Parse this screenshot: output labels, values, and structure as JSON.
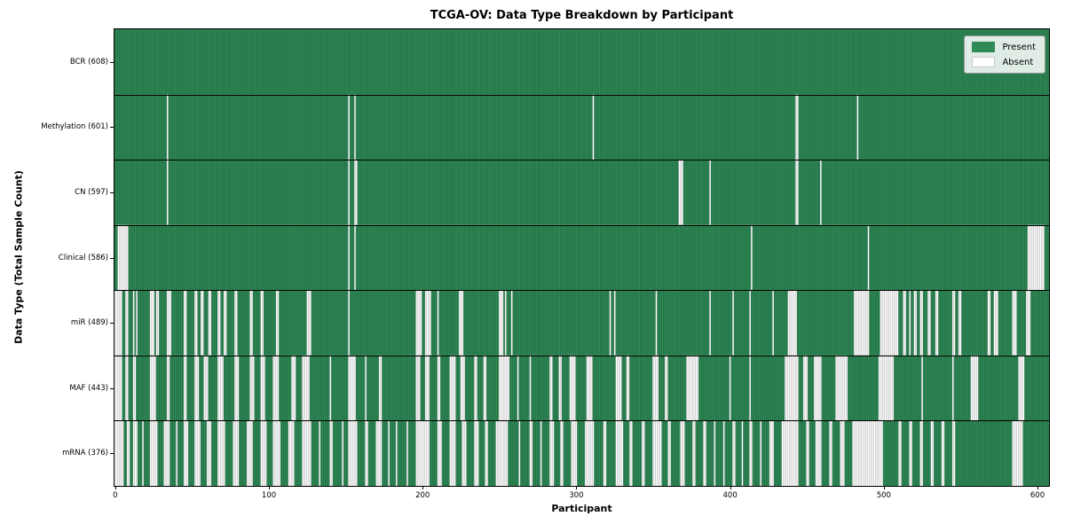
{
  "title": "TCGA-OV: Data Type Breakdown by Participant",
  "legend": {
    "present_label": "Present",
    "absent_label": "Absent"
  },
  "chart_data": {
    "type": "heatmap",
    "title": "TCGA-OV: Data Type Breakdown by Participant",
    "xlabel": "Participant",
    "ylabel": "Data Type (Total Sample Count)",
    "legend_labels": [
      "Present",
      "Absent"
    ],
    "legend_position": "upper right",
    "n_participants": 608,
    "x_ticks": [
      0,
      100,
      200,
      300,
      400,
      500,
      600
    ],
    "xlim": [
      -0.5,
      607.5
    ],
    "grid": false,
    "colors": {
      "present": "#2e8b57",
      "absent": "#ffffff",
      "cell_edge": "rgba(0,0,0,0.30)",
      "row_separator": "#000000",
      "spine": "#000000"
    },
    "rows": [
      {
        "name": "BCR",
        "label": "BCR (608)",
        "present_count": 608,
        "absent_ranges": []
      },
      {
        "name": "Methylation",
        "label": "Methylation (601)",
        "present_count": 601,
        "absent_ranges": [
          [
            34,
            34
          ],
          [
            152,
            152
          ],
          [
            156,
            156
          ],
          [
            311,
            311
          ],
          [
            443,
            444
          ],
          [
            483,
            483
          ]
        ]
      },
      {
        "name": "CN",
        "label": "CN (597)",
        "present_count": 597,
        "absent_ranges": [
          [
            34,
            34
          ],
          [
            152,
            152
          ],
          [
            156,
            157
          ],
          [
            367,
            369
          ],
          [
            387,
            387
          ],
          [
            443,
            444
          ],
          [
            459,
            459
          ]
        ]
      },
      {
        "name": "Clinical",
        "label": "Clinical (586)",
        "present_count": 586,
        "absent_ranges": [
          [
            2,
            8
          ],
          [
            152,
            152
          ],
          [
            156,
            156
          ],
          [
            414,
            414
          ],
          [
            490,
            490
          ],
          [
            594,
            604
          ]
        ]
      },
      {
        "name": "miR",
        "label": "miR (489)",
        "present_count": 489,
        "absent_ranges": [
          [
            0,
            4
          ],
          [
            7,
            8
          ],
          [
            12,
            12
          ],
          [
            14,
            14
          ],
          [
            23,
            25
          ],
          [
            27,
            28
          ],
          [
            34,
            36
          ],
          [
            45,
            46
          ],
          [
            52,
            53
          ],
          [
            56,
            57
          ],
          [
            61,
            62
          ],
          [
            67,
            68
          ],
          [
            71,
            72
          ],
          [
            78,
            79
          ],
          [
            88,
            89
          ],
          [
            95,
            96
          ],
          [
            105,
            106
          ],
          [
            125,
            127
          ],
          [
            152,
            152
          ],
          [
            196,
            199
          ],
          [
            202,
            205
          ],
          [
            210,
            210
          ],
          [
            224,
            226
          ],
          [
            250,
            252
          ],
          [
            254,
            254
          ],
          [
            258,
            258
          ],
          [
            322,
            322
          ],
          [
            325,
            325
          ],
          [
            352,
            352
          ],
          [
            387,
            387
          ],
          [
            402,
            402
          ],
          [
            413,
            413
          ],
          [
            428,
            428
          ],
          [
            438,
            443
          ],
          [
            481,
            490
          ],
          [
            498,
            509
          ],
          [
            513,
            514
          ],
          [
            517,
            517
          ],
          [
            520,
            521
          ],
          [
            524,
            525
          ],
          [
            529,
            530
          ],
          [
            534,
            535
          ],
          [
            545,
            546
          ],
          [
            549,
            550
          ],
          [
            568,
            569
          ],
          [
            572,
            574
          ],
          [
            584,
            586
          ],
          [
            593,
            595
          ]
        ]
      },
      {
        "name": "MAF",
        "label": "MAF (443)",
        "present_count": 443,
        "absent_ranges": [
          [
            0,
            4
          ],
          [
            7,
            8
          ],
          [
            12,
            13
          ],
          [
            23,
            26
          ],
          [
            34,
            35
          ],
          [
            45,
            46
          ],
          [
            52,
            54
          ],
          [
            58,
            60
          ],
          [
            67,
            70
          ],
          [
            78,
            80
          ],
          [
            88,
            90
          ],
          [
            95,
            97
          ],
          [
            103,
            106
          ],
          [
            115,
            117
          ],
          [
            122,
            126
          ],
          [
            140,
            140
          ],
          [
            152,
            156
          ],
          [
            163,
            163
          ],
          [
            172,
            173
          ],
          [
            196,
            198
          ],
          [
            202,
            204
          ],
          [
            210,
            211
          ],
          [
            218,
            221
          ],
          [
            225,
            227
          ],
          [
            234,
            235
          ],
          [
            240,
            241
          ],
          [
            250,
            256
          ],
          [
            262,
            262
          ],
          [
            270,
            270
          ],
          [
            283,
            284
          ],
          [
            289,
            290
          ],
          [
            296,
            299
          ],
          [
            307,
            310
          ],
          [
            326,
            329
          ],
          [
            333,
            334
          ],
          [
            350,
            353
          ],
          [
            358,
            359
          ],
          [
            372,
            379
          ],
          [
            400,
            400
          ],
          [
            413,
            413
          ],
          [
            436,
            444
          ],
          [
            448,
            450
          ],
          [
            455,
            459
          ],
          [
            469,
            476
          ],
          [
            497,
            506
          ],
          [
            525,
            525
          ],
          [
            545,
            545
          ],
          [
            557,
            561
          ],
          [
            588,
            591
          ]
        ]
      },
      {
        "name": "mRNA",
        "label": "mRNA (376)",
        "present_count": 376,
        "absent_ranges": [
          [
            0,
            5
          ],
          [
            8,
            9
          ],
          [
            12,
            14
          ],
          [
            18,
            18
          ],
          [
            23,
            27
          ],
          [
            32,
            35
          ],
          [
            40,
            40
          ],
          [
            45,
            47
          ],
          [
            52,
            55
          ],
          [
            60,
            62
          ],
          [
            67,
            71
          ],
          [
            77,
            80
          ],
          [
            86,
            89
          ],
          [
            95,
            98
          ],
          [
            103,
            107
          ],
          [
            113,
            116
          ],
          [
            122,
            127
          ],
          [
            133,
            133
          ],
          [
            140,
            141
          ],
          [
            148,
            148
          ],
          [
            152,
            157
          ],
          [
            163,
            164
          ],
          [
            170,
            173
          ],
          [
            178,
            178
          ],
          [
            183,
            183
          ],
          [
            190,
            190
          ],
          [
            196,
            204
          ],
          [
            210,
            212
          ],
          [
            218,
            221
          ],
          [
            226,
            228
          ],
          [
            234,
            236
          ],
          [
            241,
            242
          ],
          [
            248,
            255
          ],
          [
            263,
            263
          ],
          [
            270,
            271
          ],
          [
            277,
            277
          ],
          [
            283,
            285
          ],
          [
            290,
            291
          ],
          [
            297,
            300
          ],
          [
            306,
            311
          ],
          [
            318,
            319
          ],
          [
            326,
            330
          ],
          [
            335,
            336
          ],
          [
            343,
            344
          ],
          [
            350,
            355
          ],
          [
            360,
            361
          ],
          [
            368,
            370
          ],
          [
            376,
            377
          ],
          [
            383,
            384
          ],
          [
            390,
            390
          ],
          [
            396,
            396
          ],
          [
            402,
            403
          ],
          [
            408,
            408
          ],
          [
            413,
            414
          ],
          [
            420,
            420
          ],
          [
            426,
            428
          ],
          [
            434,
            444
          ],
          [
            450,
            451
          ],
          [
            456,
            459
          ],
          [
            465,
            466
          ],
          [
            472,
            474
          ],
          [
            480,
            499
          ],
          [
            510,
            511
          ],
          [
            517,
            518
          ],
          [
            524,
            525
          ],
          [
            531,
            532
          ],
          [
            538,
            539
          ],
          [
            545,
            546
          ],
          [
            584,
            590
          ]
        ]
      }
    ]
  }
}
